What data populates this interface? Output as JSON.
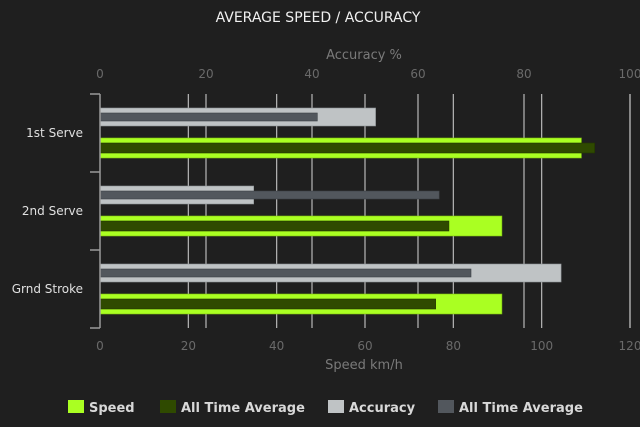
{
  "chart_data": {
    "type": "bar",
    "orientation": "horizontal",
    "title": "AVERAGE SPEED / ACCURACY",
    "categories": [
      "1st Serve",
      "2nd Serve",
      "Grnd Stroke"
    ],
    "x_axis_bottom": {
      "label": "Speed km/h",
      "range": [
        0,
        120
      ],
      "ticks": [
        0,
        20,
        40,
        60,
        80,
        100,
        120
      ]
    },
    "x_axis_top": {
      "label": "Accuracy %",
      "range": [
        0,
        100
      ],
      "ticks": [
        0,
        20,
        40,
        60,
        80,
        100
      ]
    },
    "grid": true,
    "legend_position": "bottom",
    "series": [
      {
        "name": "Speed",
        "axis": "bottom",
        "color": "#aaff22",
        "values": [
          109,
          91,
          91
        ]
      },
      {
        "name": "All Time Average",
        "axis": "bottom",
        "color": "#2f4a00",
        "values": [
          112,
          79,
          76
        ]
      },
      {
        "name": "Accuracy",
        "axis": "top",
        "color": "#bfc3c5",
        "values": [
          52,
          29,
          87
        ]
      },
      {
        "name": "All Time Average",
        "axis": "top",
        "color": "#52575d",
        "values": [
          41,
          64,
          70
        ]
      }
    ]
  }
}
